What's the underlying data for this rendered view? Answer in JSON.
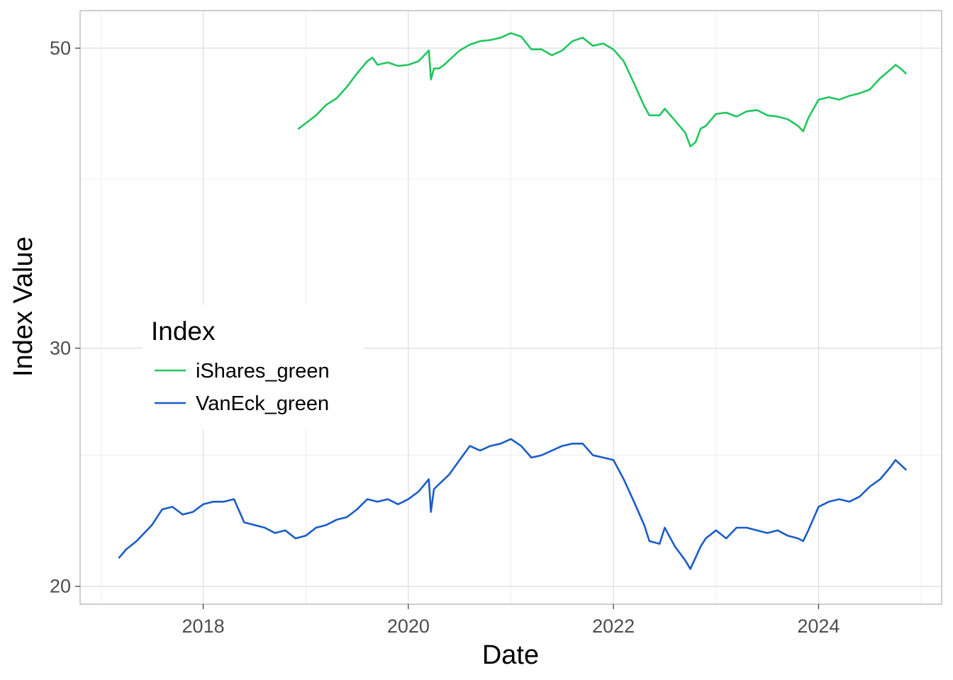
{
  "chart_data": {
    "type": "line",
    "xlabel": "Date",
    "ylabel": "Index Value",
    "xlim": [
      2016.8,
      2025.2
    ],
    "ylim": [
      19.4,
      53.3
    ],
    "x_ticks": [
      2018,
      2020,
      2022,
      2024
    ],
    "x_tick_labels": [
      "2018",
      "2020",
      "2022",
      "2024"
    ],
    "x_minor_ticks": [
      2017,
      2019,
      2021,
      2023,
      2025
    ],
    "y_ticks": [
      20,
      30,
      50
    ],
    "y_tick_labels": [
      "20",
      "30",
      "50"
    ],
    "y_minor_ticks": [
      25,
      40
    ],
    "y_scale": "log",
    "grid": true,
    "legend": {
      "title": "Index",
      "position": "left-middle"
    },
    "series": [
      {
        "name": "iShares_green",
        "color": "#22c55e",
        "x": [
          2018.93,
          2019.0,
          2019.1,
          2019.2,
          2019.3,
          2019.4,
          2019.5,
          2019.6,
          2019.65,
          2019.7,
          2019.8,
          2019.9,
          2020.0,
          2020.1,
          2020.2,
          2020.22,
          2020.25,
          2020.3,
          2020.35,
          2020.4,
          2020.5,
          2020.6,
          2020.7,
          2020.8,
          2020.9,
          2021.0,
          2021.1,
          2021.2,
          2021.3,
          2021.4,
          2021.5,
          2021.6,
          2021.7,
          2021.8,
          2021.9,
          2022.0,
          2022.1,
          2022.2,
          2022.3,
          2022.35,
          2022.45,
          2022.5,
          2022.6,
          2022.7,
          2022.75,
          2022.8,
          2022.85,
          2022.9,
          2023.0,
          2023.1,
          2023.2,
          2023.3,
          2023.4,
          2023.5,
          2023.6,
          2023.7,
          2023.8,
          2023.85,
          2023.9,
          2024.0,
          2024.1,
          2024.2,
          2024.3,
          2024.4,
          2024.5,
          2024.6,
          2024.7,
          2024.75,
          2024.8,
          2024.85
        ],
        "values": [
          43.6,
          44.0,
          44.6,
          45.4,
          45.9,
          46.8,
          47.9,
          48.9,
          49.2,
          48.6,
          48.8,
          48.5,
          48.6,
          48.9,
          49.8,
          47.4,
          48.3,
          48.3,
          48.6,
          49.0,
          49.8,
          50.3,
          50.6,
          50.7,
          50.9,
          51.3,
          51.0,
          49.9,
          49.9,
          49.4,
          49.8,
          50.6,
          50.9,
          50.2,
          50.4,
          49.9,
          48.9,
          47.1,
          45.3,
          44.6,
          44.6,
          45.1,
          44.2,
          43.3,
          42.3,
          42.6,
          43.6,
          43.8,
          44.7,
          44.8,
          44.5,
          44.9,
          45.0,
          44.6,
          44.5,
          44.3,
          43.8,
          43.4,
          44.4,
          45.8,
          46.0,
          45.8,
          46.1,
          46.3,
          46.6,
          47.5,
          48.2,
          48.6,
          48.3,
          47.9
        ]
      },
      {
        "name": "VanEck_green",
        "color": "#1a5cc6",
        "x": [
          2017.18,
          2017.25,
          2017.35,
          2017.5,
          2017.6,
          2017.7,
          2017.8,
          2017.9,
          2018.0,
          2018.1,
          2018.2,
          2018.3,
          2018.4,
          2018.5,
          2018.6,
          2018.7,
          2018.8,
          2018.9,
          2019.0,
          2019.1,
          2019.2,
          2019.3,
          2019.4,
          2019.5,
          2019.6,
          2019.7,
          2019.8,
          2019.9,
          2020.0,
          2020.1,
          2020.2,
          2020.22,
          2020.25,
          2020.3,
          2020.4,
          2020.5,
          2020.6,
          2020.7,
          2020.8,
          2020.9,
          2021.0,
          2021.1,
          2021.2,
          2021.3,
          2021.4,
          2021.5,
          2021.6,
          2021.7,
          2021.8,
          2021.9,
          2022.0,
          2022.1,
          2022.2,
          2022.3,
          2022.35,
          2022.45,
          2022.5,
          2022.6,
          2022.7,
          2022.75,
          2022.8,
          2022.85,
          2022.9,
          2023.0,
          2023.1,
          2023.2,
          2023.3,
          2023.4,
          2023.5,
          2023.6,
          2023.7,
          2023.8,
          2023.85,
          2023.9,
          2024.0,
          2024.1,
          2024.2,
          2024.3,
          2024.4,
          2024.5,
          2024.6,
          2024.7,
          2024.75,
          2024.8,
          2024.85
        ],
        "values": [
          21.0,
          21.3,
          21.6,
          22.2,
          22.8,
          22.9,
          22.6,
          22.7,
          23.0,
          23.1,
          23.1,
          23.2,
          22.3,
          22.2,
          22.1,
          21.9,
          22.0,
          21.7,
          21.8,
          22.1,
          22.2,
          22.4,
          22.5,
          22.8,
          23.2,
          23.1,
          23.2,
          23.0,
          23.2,
          23.5,
          24.0,
          22.7,
          23.6,
          23.8,
          24.2,
          24.8,
          25.4,
          25.2,
          25.4,
          25.5,
          25.7,
          25.4,
          24.9,
          25.0,
          25.2,
          25.4,
          25.5,
          25.5,
          25.0,
          24.9,
          24.8,
          24.0,
          23.1,
          22.2,
          21.6,
          21.5,
          22.1,
          21.4,
          20.9,
          20.6,
          21.0,
          21.4,
          21.7,
          22.0,
          21.7,
          22.1,
          22.1,
          22.0,
          21.9,
          22.0,
          21.8,
          21.7,
          21.6,
          22.0,
          22.9,
          23.1,
          23.2,
          23.1,
          23.3,
          23.7,
          24.0,
          24.5,
          24.8,
          24.6,
          24.4
        ]
      }
    ]
  }
}
